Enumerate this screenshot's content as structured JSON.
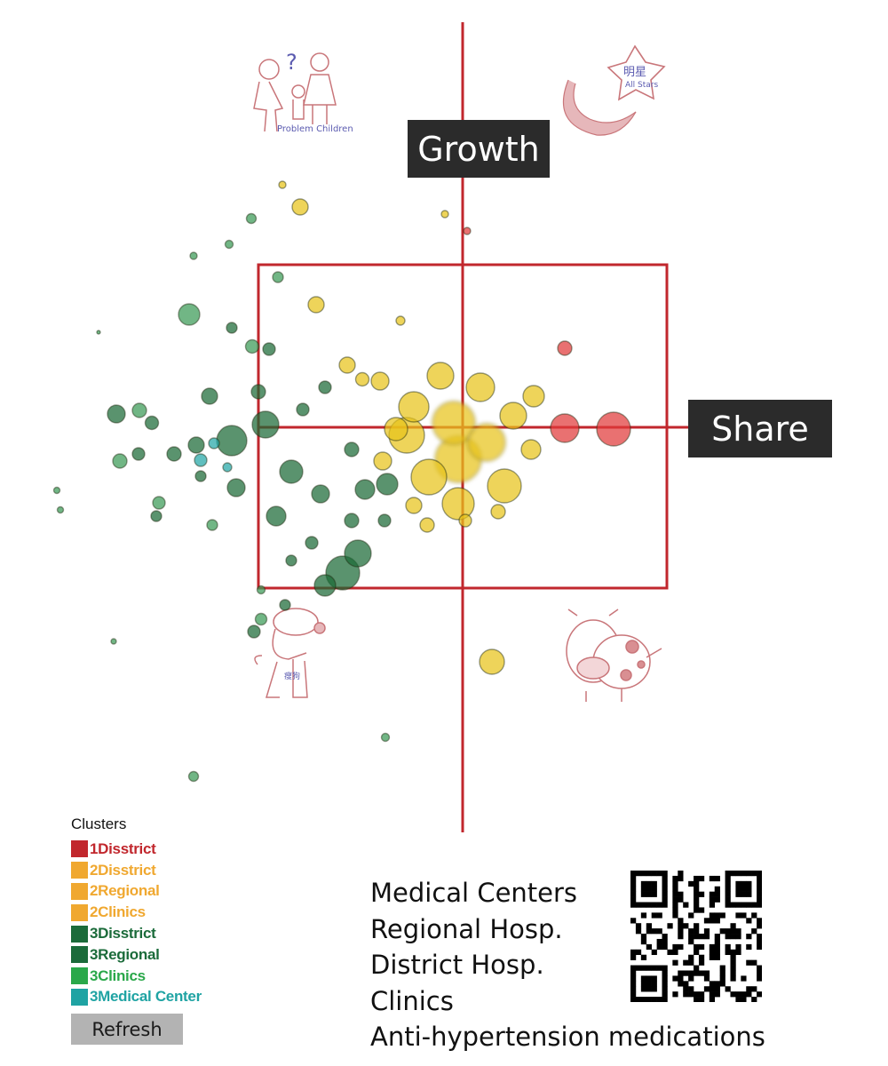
{
  "chart_data": {
    "type": "scatter",
    "xlabel": "Share",
    "ylabel": "Growth",
    "grid": false,
    "legend_placement": "bottom-left",
    "quadrant_box": {
      "x": [
        -230,
        230
      ],
      "y": [
        -181,
        183
      ]
    },
    "legend": {
      "title": "Clusters",
      "items": [
        {
          "label": "1Disstrict",
          "color": "#c1272d"
        },
        {
          "label": "2Disstrict",
          "color": "#f0a830"
        },
        {
          "label": "2Regional",
          "color": "#f0a830"
        },
        {
          "label": "2Clinics",
          "color": "#f0a830"
        },
        {
          "label": "3Disstrict",
          "color": "#1b6b3a"
        },
        {
          "label": "3Regional",
          "color": "#1b6b3a"
        },
        {
          "label": "3Clinics",
          "color": "#2aa84a"
        },
        {
          "label": "3Medical Center",
          "color": "#1fa3a3"
        }
      ]
    },
    "series": [
      {
        "name": "1Disstrict",
        "color": "#e03a3a",
        "points": [
          [
            170,
            -2,
            38
          ],
          [
            115,
            -1,
            32
          ],
          [
            115,
            89,
            16
          ],
          [
            5,
            221,
            8
          ]
        ]
      },
      {
        "name": "2Disstrict",
        "color": "#e8c41a",
        "points": [
          [
            -5,
            -36,
            52
          ],
          [
            -10,
            5,
            48
          ],
          [
            27,
            -17,
            42
          ],
          [
            -38,
            -56,
            40
          ],
          [
            47,
            -66,
            38
          ],
          [
            -5,
            -86,
            36
          ],
          [
            -63,
            -9,
            40
          ],
          [
            -55,
            23,
            34
          ],
          [
            20,
            45,
            32
          ],
          [
            -25,
            58,
            30
          ],
          [
            57,
            13,
            30
          ],
          [
            80,
            35,
            24
          ],
          [
            77,
            -25,
            22
          ],
          [
            -75,
            -2,
            26
          ],
          [
            -93,
            52,
            20
          ],
          [
            -130,
            70,
            18
          ],
          [
            -165,
            138,
            18
          ],
          [
            -183,
            248,
            18
          ],
          [
            -113,
            54,
            15
          ],
          [
            -90,
            -38,
            20
          ],
          [
            -55,
            -88,
            18
          ],
          [
            3,
            -105,
            14
          ],
          [
            -40,
            -110,
            16
          ],
          [
            40,
            -95,
            16
          ],
          [
            33,
            -264,
            28
          ],
          [
            -20,
            240,
            8
          ],
          [
            -203,
            273,
            8
          ],
          [
            -70,
            120,
            10
          ]
        ]
      },
      {
        "name": "3Disstrict",
        "color": "#1b6a36",
        "points": [
          [
            -135,
            -164,
            38
          ],
          [
            -118,
            -142,
            30
          ],
          [
            -155,
            -178,
            24
          ],
          [
            -260,
            -15,
            34
          ],
          [
            -222,
            3,
            30
          ],
          [
            -193,
            -50,
            26
          ],
          [
            -85,
            -64,
            24
          ],
          [
            -110,
            -70,
            22
          ],
          [
            -160,
            -75,
            20
          ],
          [
            -210,
            -100,
            22
          ],
          [
            -255,
            -68,
            20
          ],
          [
            -300,
            -20,
            18
          ],
          [
            -325,
            -30,
            16
          ],
          [
            -350,
            5,
            15
          ],
          [
            -285,
            35,
            18
          ],
          [
            -230,
            40,
            16
          ],
          [
            -180,
            20,
            14
          ],
          [
            -155,
            45,
            14
          ],
          [
            -125,
            -25,
            16
          ],
          [
            -88,
            -105,
            14
          ],
          [
            -125,
            -105,
            16
          ],
          [
            -170,
            -130,
            14
          ],
          [
            -193,
            -150,
            12
          ],
          [
            -218,
            88,
            14
          ],
          [
            -260,
            112,
            12
          ],
          [
            -200,
            -200,
            12
          ],
          [
            -235,
            -230,
            14
          ],
          [
            -295,
            -55,
            12
          ],
          [
            -365,
            -30,
            14
          ],
          [
            -390,
            15,
            20
          ],
          [
            -345,
            -100,
            12
          ]
        ]
      },
      {
        "name": "3Clinics",
        "color": "#3a9a56",
        "points": [
          [
            -308,
            127,
            24
          ],
          [
            -237,
            91,
            15
          ],
          [
            -364,
            19,
            16
          ],
          [
            -386,
            -38,
            16
          ],
          [
            -342,
            -85,
            14
          ],
          [
            -282,
            -110,
            12
          ],
          [
            -227,
            -216,
            13
          ],
          [
            -303,
            -393,
            11
          ],
          [
            -87,
            -349,
            9
          ],
          [
            -457,
            -71,
            7
          ],
          [
            -453,
            -93,
            7
          ],
          [
            -393,
            -241,
            6
          ],
          [
            -410,
            107,
            4
          ],
          [
            -238,
            235,
            11
          ],
          [
            -263,
            206,
            9
          ],
          [
            -303,
            193,
            8
          ],
          [
            -208,
            169,
            12
          ],
          [
            -227,
            -183,
            9
          ]
        ]
      },
      {
        "name": "3Medical Center",
        "color": "#22a6a6",
        "points": [
          [
            -295,
            -37,
            14
          ],
          [
            -280,
            -18,
            12
          ],
          [
            -265,
            -45,
            10
          ]
        ]
      }
    ]
  },
  "quadrant_labels": {
    "growth": "Growth",
    "share": "Share"
  },
  "legend_ui": {
    "refresh_label": "Refresh"
  },
  "notes": {
    "lines": [
      "Medical Centers",
      "Regional Hosp.",
      "District Hosp.",
      "Clinics",
      "Anti-hypertension medications"
    ]
  },
  "stickers": {
    "problem_children": "Problem Children",
    "all_stars": "All Stars",
    "stars_cn": "明星",
    "dogs_cn": "瘦狗"
  },
  "colors": {
    "axis": "#c1272d",
    "box": "#c1272d",
    "label_bg": "#2b2b2b"
  }
}
